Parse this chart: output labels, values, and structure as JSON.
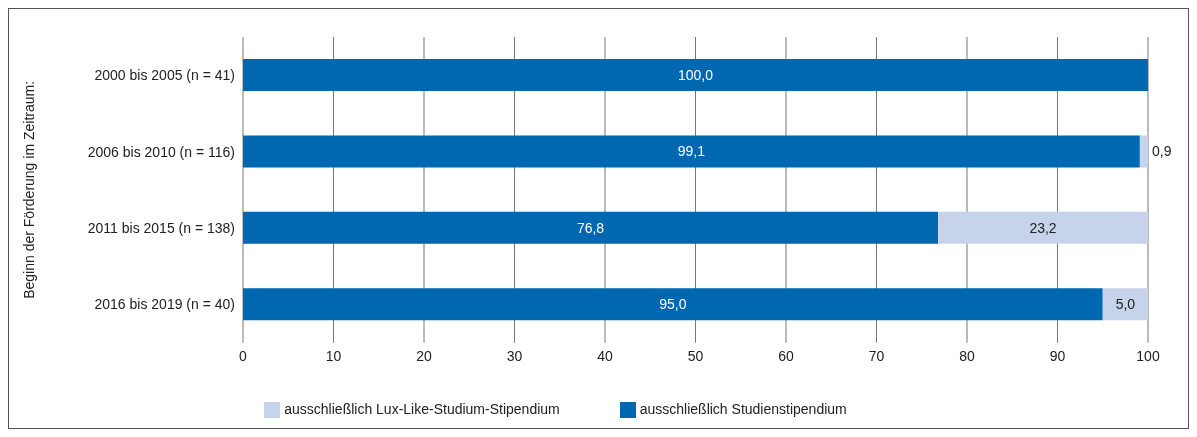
{
  "chart_data": {
    "type": "bar",
    "orientation": "horizontal",
    "stacked": true,
    "ylabel": "Beginn der Förderung im Zeitraum:",
    "categories": [
      "2000 bis 2005 (n = 41)",
      "2006 bis 2010 (n = 116)",
      "2011 bis 2015 (n = 138)",
      "2016 bis 2019 (n = 40)"
    ],
    "series": [
      {
        "name": "ausschließlich Studienstipendium",
        "color": "#0067b1",
        "values": [
          100.0,
          99.1,
          76.8,
          95.0
        ],
        "value_labels": [
          "100,0",
          "99,1",
          "76,8",
          "95,0"
        ]
      },
      {
        "name": "ausschließlich Lux-Like-Studium-Stipendium",
        "color": "#c6d3ea",
        "values": [
          0,
          0.9,
          23.2,
          5.0
        ],
        "value_labels": [
          null,
          "0,9",
          "23,2",
          "5,0"
        ]
      }
    ],
    "xlim": [
      0,
      100
    ],
    "xticks": [
      0,
      10,
      20,
      30,
      40,
      50,
      60,
      70,
      80,
      90,
      100
    ],
    "grid": "x",
    "legend": "bottom"
  }
}
